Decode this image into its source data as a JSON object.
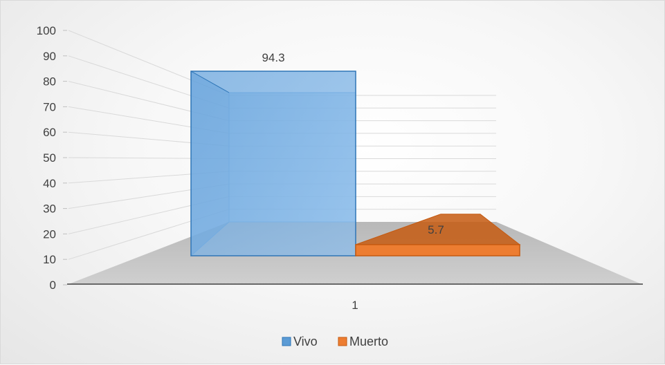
{
  "chart_data": {
    "type": "bar",
    "categories": [
      "1"
    ],
    "series": [
      {
        "name": "Vivo",
        "values": [
          94.3
        ],
        "color": "#5B9BD5"
      },
      {
        "name": "Muerto",
        "values": [
          5.7
        ],
        "color": "#ED7D31"
      }
    ],
    "data_labels": [
      "94.3",
      "5.7"
    ],
    "title": "",
    "xlabel": "",
    "ylabel": "",
    "ylim": [
      0,
      100
    ],
    "y_ticks": [
      0,
      10,
      20,
      30,
      40,
      50,
      60,
      70,
      80,
      90,
      100
    ],
    "grid": true,
    "style": "3d-clustered-column",
    "legend_position": "bottom"
  }
}
